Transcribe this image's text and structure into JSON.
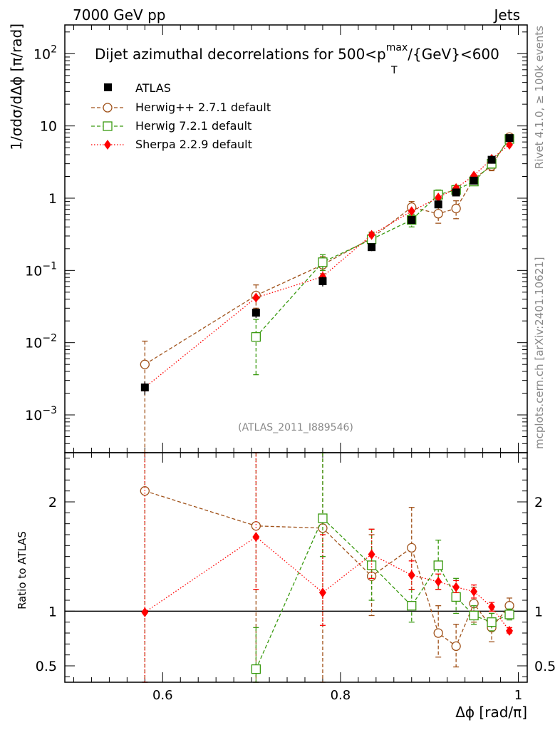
{
  "header": {
    "left": "7000 GeV pp",
    "right": "Jets"
  },
  "title": {
    "prefix": "Dijet azimuthal decorrelations for 500<p",
    "sup": "max",
    "sub": "T",
    "suffix": "/{GeV}<600"
  },
  "side_labels": {
    "top": "Rivet 4.1.0, ≥ 100k events",
    "bottom": "mcplots.cern.ch [arXiv:2401.10621]"
  },
  "analysis_id": "(ATLAS_2011_I889546)",
  "colors": {
    "atlas": "#000000",
    "herwigpp": "#a0521a",
    "herwig7": "#3a9a10",
    "sherpa": "#ff0000"
  },
  "chart_data": {
    "type": "scatter",
    "xlabel": "Δϕ [rad/π]",
    "ylabel": "1/σdσ/dΔϕ [π/rad]",
    "ratio_ylabel": "Ratio to ATLAS",
    "xlim": [
      0.49,
      1.01
    ],
    "ylim_log": [
      0.0003,
      250
    ],
    "ratio_ylim": [
      0.35,
      2.45
    ],
    "x_ticks": [
      0.6,
      0.8,
      1.0
    ],
    "x_tick_labels": [
      "0.6",
      "0.8",
      "1"
    ],
    "y_ticks": [
      {
        "value": 0.001,
        "base": "10",
        "exp": "−3"
      },
      {
        "value": 0.01,
        "base": "10",
        "exp": "−2"
      },
      {
        "value": 0.1,
        "base": "10",
        "exp": "−1"
      },
      {
        "value": 1,
        "base": "1",
        "exp": ""
      },
      {
        "value": 10,
        "base": "10",
        "exp": ""
      },
      {
        "value": 100,
        "base": "10",
        "exp": "2"
      }
    ],
    "ratio_ticks": [
      {
        "value": 0.5,
        "label": "0.5"
      },
      {
        "value": 1,
        "label": "1"
      },
      {
        "value": 2,
        "label": "2"
      }
    ],
    "x": [
      0.58,
      0.705,
      0.78,
      0.835,
      0.88,
      0.91,
      0.93,
      0.95,
      0.97,
      0.99
    ],
    "series": [
      {
        "name": "ATLAS",
        "key": "atlas",
        "marker": "square-filled",
        "line": "none",
        "values": [
          0.0024,
          0.026,
          0.071,
          0.21,
          0.5,
          0.82,
          1.2,
          1.75,
          3.4,
          6.8
        ],
        "err_lo": [
          0.0019,
          0.022,
          0.06,
          0.185,
          0.45,
          0.75,
          1.1,
          1.65,
          3.2,
          6.6
        ],
        "err_hi": [
          0.0029,
          0.03,
          0.082,
          0.235,
          0.55,
          0.89,
          1.3,
          1.85,
          3.6,
          7.0
        ],
        "ratio": null
      },
      {
        "name": "Herwig++ 2.7.1 default",
        "key": "herwigpp",
        "marker": "circle-open",
        "line": "dashed",
        "values": [
          0.005,
          0.045,
          0.12,
          0.28,
          0.75,
          0.61,
          0.72,
          1.85,
          2.8,
          7.0
        ],
        "err_lo": [
          0.0001,
          0.03,
          0.09,
          0.22,
          0.6,
          0.45,
          0.52,
          1.6,
          2.4,
          6.5
        ],
        "err_hi": [
          0.0105,
          0.063,
          0.155,
          0.34,
          0.9,
          0.78,
          0.92,
          2.1,
          3.2,
          7.5
        ],
        "ratio": [
          2.1,
          1.78,
          1.76,
          1.32,
          1.58,
          0.8,
          0.68,
          1.07,
          0.85,
          1.05
        ],
        "ratio_err_lo": [
          0.35,
          0.35,
          0.35,
          0.96,
          1.2,
          0.58,
          0.49,
          0.9,
          0.72,
          0.97
        ],
        "ratio_err_hi": [
          2.45,
          2.45,
          2.45,
          1.7,
          1.95,
          1.05,
          0.88,
          1.22,
          0.98,
          1.12
        ]
      },
      {
        "name": "Herwig 7.2.1 default",
        "key": "herwig7",
        "marker": "square-open",
        "line": "dashed",
        "values": [
          null,
          0.012,
          0.13,
          0.27,
          0.5,
          1.12,
          1.3,
          1.7,
          3.0,
          6.6
        ],
        "err_lo": [
          null,
          0.0036,
          0.1,
          0.21,
          0.4,
          0.95,
          1.1,
          1.5,
          2.6,
          6.2
        ],
        "err_hi": [
          null,
          0.021,
          0.165,
          0.33,
          0.6,
          1.3,
          1.5,
          1.9,
          3.4,
          7.0
        ],
        "ratio": [
          null,
          0.47,
          1.85,
          1.42,
          1.05,
          1.42,
          1.13,
          0.96,
          0.9,
          0.97
        ],
        "ratio_err_lo": [
          null,
          0.35,
          1.5,
          1.1,
          0.9,
          1.2,
          0.98,
          0.88,
          0.82,
          0.92
        ],
        "ratio_err_hi": [
          null,
          0.85,
          2.45,
          1.75,
          1.2,
          1.65,
          1.3,
          1.05,
          0.98,
          1.02
        ]
      },
      {
        "name": "Sherpa 2.2.9 default",
        "key": "sherpa",
        "marker": "diamond-filled",
        "line": "dotted",
        "values": [
          0.0024,
          0.042,
          0.082,
          0.31,
          0.66,
          1.02,
          1.38,
          2.05,
          3.5,
          5.5
        ],
        "err_lo": [
          null,
          null,
          null,
          null,
          null,
          null,
          null,
          null,
          null,
          null
        ],
        "err_hi": [
          null,
          null,
          null,
          null,
          null,
          null,
          null,
          null,
          null,
          null
        ],
        "ratio": [
          0.99,
          1.68,
          1.17,
          1.52,
          1.33,
          1.27,
          1.22,
          1.18,
          1.04,
          0.82
        ],
        "ratio_err_lo": [
          0.35,
          1.2,
          0.87,
          1.3,
          1.2,
          1.2,
          1.17,
          1.12,
          1.0,
          0.8
        ],
        "ratio_err_hi": [
          2.45,
          2.45,
          1.7,
          1.75,
          1.46,
          1.34,
          1.28,
          1.24,
          1.08,
          0.85
        ]
      }
    ]
  }
}
